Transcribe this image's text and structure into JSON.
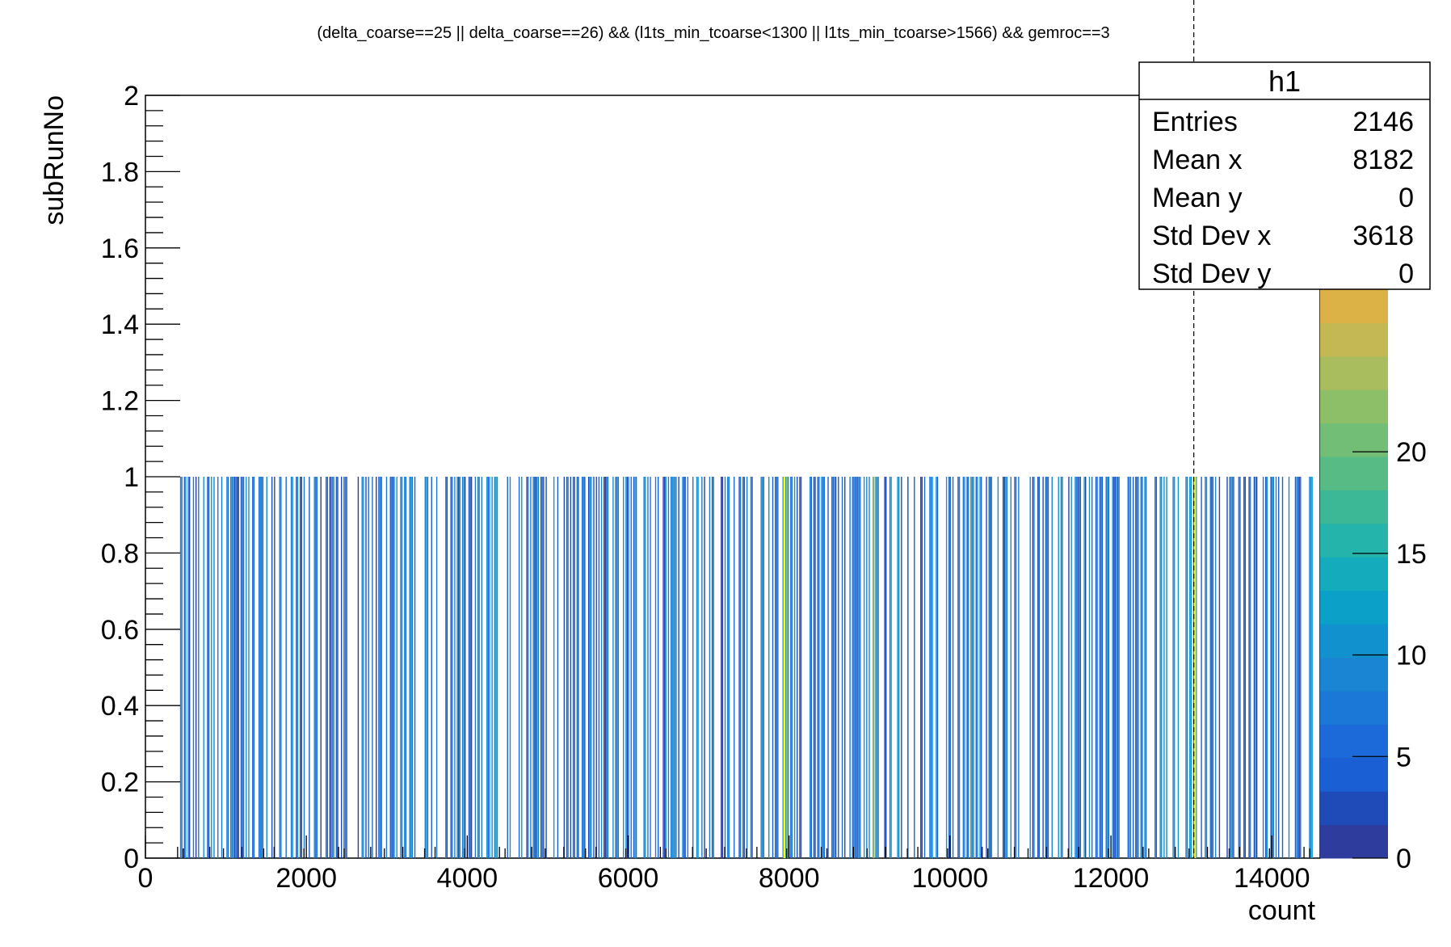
{
  "chart_data": {
    "type": "heatmap",
    "title": "(delta_coarse==25 || delta_coarse==26) && (l1ts_min_tcoarse<1300 || l1ts_min_tcoarse>1566) && gemroc==3",
    "xlabel": "count",
    "ylabel": "subRunNo",
    "xlim": [
      0,
      14600
    ],
    "ylim": [
      0,
      2
    ],
    "x_ticks": [
      "0",
      "2000",
      "4000",
      "6000",
      "8000",
      "10000",
      "12000",
      "14000"
    ],
    "y_ticks": [
      "0",
      "0.2",
      "0.4",
      "0.6",
      "0.8",
      "1",
      "1.2",
      "1.4",
      "1.6",
      "1.8",
      "2"
    ],
    "z_ticks": [
      "0",
      "5",
      "10",
      "15",
      "20"
    ],
    "zlim": [
      0,
      28
    ],
    "y_bin": [
      0,
      1
    ],
    "x_range": [
      430,
      14500
    ],
    "vertical_marker_x": 13030,
    "highlight_bins": [
      {
        "x": 7930,
        "z": 27
      },
      {
        "x": 7960,
        "z": 22
      },
      {
        "x": 9040,
        "z": 23
      },
      {
        "x": 13035,
        "z": 25
      }
    ],
    "grid": false,
    "colorbar": true
  },
  "stats": {
    "name": "h1",
    "rows": [
      {
        "label": "Entries",
        "value": "2146"
      },
      {
        "label": "Mean x",
        "value": "8182"
      },
      {
        "label": "Mean y",
        "value": "0"
      },
      {
        "label": "Std Dev x",
        "value": "3618"
      },
      {
        "label": "Std Dev y",
        "value": "0"
      }
    ]
  },
  "colors": {
    "palette": [
      "#2e3c9e",
      "#1f4bb8",
      "#1a5fd3",
      "#1c6ad9",
      "#1b78d6",
      "#1a85d3",
      "#1192cf",
      "#0aa0c8",
      "#14acbc",
      "#24b4ab",
      "#3db896",
      "#57bb86",
      "#72be76",
      "#8dbf69",
      "#a9bd5e",
      "#c4b854",
      "#dcb247"
    ],
    "marker": "#ffff00",
    "axis": "#000000"
  }
}
